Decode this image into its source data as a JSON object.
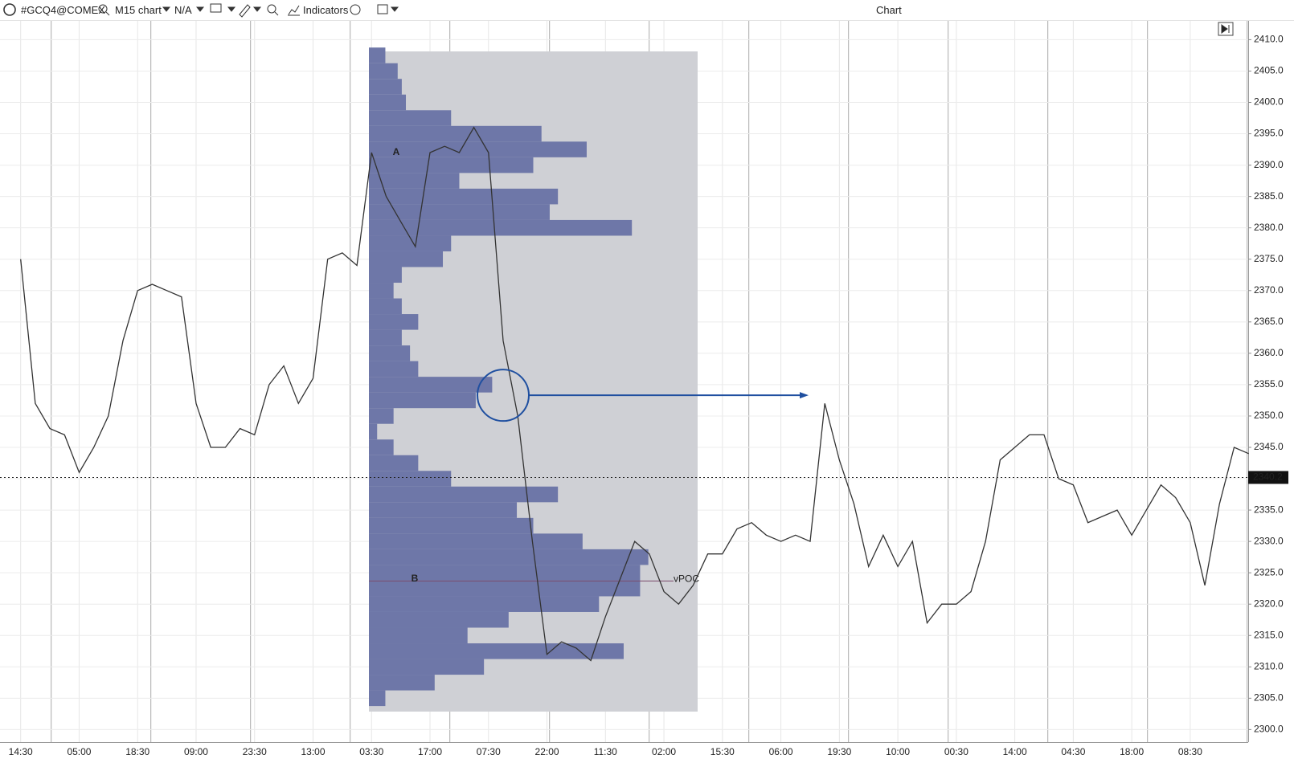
{
  "toolbar": {
    "symbol": "#GCQ4@COMEX",
    "timeframe": "M15 chart",
    "account": "N/A",
    "indicators": "Indicators",
    "window_title": "Chart"
  },
  "chart_data": {
    "type": "line",
    "categories": [
      "14:30",
      null,
      null,
      null,
      "05:00",
      null,
      null,
      null,
      "18:30",
      null,
      null,
      null,
      "09:00",
      null,
      null,
      null,
      "23:30",
      null,
      null,
      null,
      "13:00",
      null,
      null,
      null,
      "03:30",
      null,
      null,
      null,
      "17:00",
      null,
      null,
      null,
      "07:30",
      null,
      null,
      null,
      "22:00",
      null,
      null,
      null,
      "11:30",
      null,
      null,
      null,
      "02:00",
      null,
      null,
      null,
      "15:30",
      null,
      null,
      null,
      "06:00",
      null,
      null,
      null,
      "19:30",
      null,
      null,
      null,
      "10:00",
      null,
      null,
      null,
      "00:30",
      null,
      null,
      null,
      "14:00",
      null,
      null,
      null,
      "04:30",
      null,
      null,
      null,
      "18:00",
      null,
      null,
      null,
      "08:30",
      null,
      null,
      null,
      null
    ],
    "series": [
      {
        "name": "#GCQ4@COMEX",
        "color": "#333333",
        "values": [
          2375,
          2352,
          2348,
          2347,
          2341,
          2345,
          2350,
          2362,
          2370,
          2371,
          2370,
          2369,
          2352,
          2345,
          2345,
          2348,
          2347,
          2355,
          2358,
          2352,
          2356,
          2375,
          2376,
          2374,
          2392,
          2385,
          2381,
          2377,
          2392,
          2393,
          2392,
          2396,
          2392,
          2362,
          2350,
          2330,
          2312,
          2314,
          2313,
          2311,
          2318,
          2324,
          2330,
          2328,
          2322,
          2320,
          2323,
          2328,
          2328,
          2332,
          2333,
          2331,
          2330,
          2331,
          2330,
          2352,
          2343,
          2336,
          2326,
          2331,
          2326,
          2330,
          2317,
          2320,
          2320,
          2322,
          2330,
          2343,
          2345,
          2347,
          2347,
          2340,
          2339,
          2333,
          2334,
          2335,
          2331,
          2335,
          2339,
          2337,
          2333,
          2323,
          2336,
          2345,
          2344
        ]
      }
    ],
    "ylim": [
      2298,
      2413
    ],
    "yticks": [
      {
        "value": 2300,
        "label": "2300.0"
      },
      {
        "value": 2305,
        "label": "2305.0"
      },
      {
        "value": 2310,
        "label": "2310.0"
      },
      {
        "value": 2315,
        "label": "2315.0"
      },
      {
        "value": 2320,
        "label": "2320.0"
      },
      {
        "value": 2325,
        "label": "2325.0"
      },
      {
        "value": 2330,
        "label": "2330.0"
      },
      {
        "value": 2335,
        "label": "2335.0"
      },
      {
        "value": 2340,
        "label": "2340.0"
      },
      {
        "value": 2345,
        "label": "2345.0"
      },
      {
        "value": 2350,
        "label": "2350.0"
      },
      {
        "value": 2355,
        "label": "2355.0"
      },
      {
        "value": 2360,
        "label": "2360.0"
      },
      {
        "value": 2365,
        "label": "2365.0"
      },
      {
        "value": 2370,
        "label": "2370.0"
      },
      {
        "value": 2375,
        "label": "2375.0"
      },
      {
        "value": 2380,
        "label": "2380.0"
      },
      {
        "value": 2385,
        "label": "2385.0"
      },
      {
        "value": 2390,
        "label": "2390.0"
      },
      {
        "value": 2395,
        "label": "2395.0"
      },
      {
        "value": 2400,
        "label": "2400.0"
      },
      {
        "value": 2405,
        "label": "2405.0"
      },
      {
        "value": 2410,
        "label": "2410.0"
      }
    ],
    "grid": true,
    "last_price": {
      "value": 2340.2,
      "label": "2340.2"
    },
    "profile": {
      "color": "#6e77a8",
      "step": 2.5,
      "xlim": [
        0,
        400
      ],
      "prices": [
        2407.5,
        2405,
        2402.5,
        2400,
        2397.5,
        2395,
        2392.5,
        2390,
        2387.5,
        2385,
        2382.5,
        2380,
        2377.5,
        2375,
        2372.5,
        2370,
        2367.5,
        2365,
        2362.5,
        2360,
        2357.5,
        2355,
        2352.5,
        2350,
        2347.5,
        2345,
        2342.5,
        2340,
        2337.5,
        2335,
        2332.5,
        2330,
        2327.5,
        2325,
        2322.5,
        2320,
        2317.5,
        2315,
        2312.5,
        2310,
        2307.5,
        2305
      ],
      "volumes": [
        20,
        35,
        40,
        45,
        100,
        210,
        265,
        200,
        110,
        230,
        220,
        320,
        100,
        90,
        40,
        30,
        40,
        60,
        40,
        50,
        60,
        150,
        130,
        30,
        10,
        30,
        60,
        100,
        230,
        180,
        200,
        260,
        340,
        330,
        330,
        280,
        170,
        120,
        310,
        140,
        80,
        20
      ],
      "vpoc": {
        "label": "vPOC",
        "value": 2323.7
      }
    },
    "annotations": [
      {
        "text": "A",
        "value": 2392
      },
      {
        "text": "B",
        "value": 2324
      }
    ],
    "highlight_level": 2353.3
  }
}
